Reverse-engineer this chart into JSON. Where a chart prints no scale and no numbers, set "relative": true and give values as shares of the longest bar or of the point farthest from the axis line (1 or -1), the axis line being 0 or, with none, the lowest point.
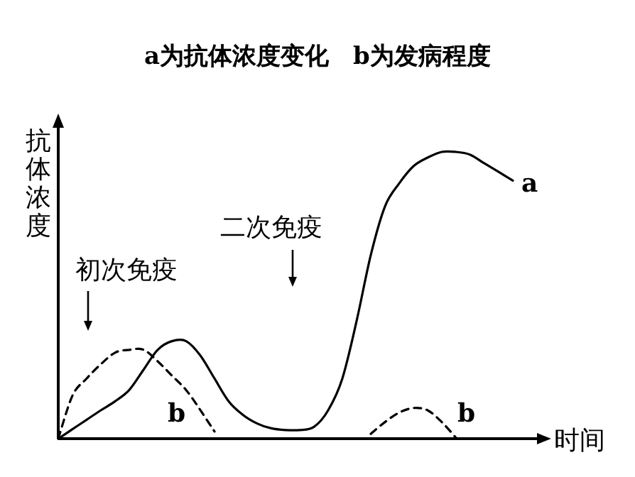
{
  "chart_data": {
    "type": "line",
    "title": "a为抗体浓度变化　b为发病程度",
    "ylabel": "抗体浓度",
    "xlabel": "时间",
    "relative": true,
    "categories": [
      null,
      null,
      null,
      null,
      null,
      null,
      null,
      null,
      null,
      null,
      null,
      null,
      null,
      null,
      null,
      null,
      null,
      null,
      null,
      null,
      null,
      null,
      null,
      null,
      null,
      null,
      null,
      null,
      null,
      null,
      null,
      null,
      null
    ],
    "series": [
      {
        "name": "a",
        "color": "#000000",
        "line_style": "solid",
        "values": [
          0,
          0.033,
          0.066,
          0.099,
          0.13,
          0.17,
          0.24,
          0.31,
          0.34,
          0.34,
          0.29,
          0.21,
          0.13,
          0.083,
          0.053,
          0.036,
          0.03,
          0.03,
          0.041,
          0.099,
          0.21,
          0.41,
          0.64,
          0.81,
          0.89,
          0.95,
          0.98,
          1,
          1,
          0.99,
          0.96,
          0.93,
          0.9
        ]
      },
      {
        "name": "b",
        "color": "#000000",
        "line_style": "dashed",
        "values": [
          0,
          0.15,
          0.21,
          0.26,
          0.3,
          0.31,
          0.31,
          0.27,
          0.22,
          0.17,
          0.1,
          0.025,
          null,
          null,
          null,
          null,
          null,
          null,
          null,
          null,
          null,
          null,
          0.017,
          0.058,
          0.091,
          0.107,
          0.099,
          0.058,
          0.003,
          null,
          null,
          null,
          null
        ]
      }
    ],
    "annotations": [
      "初次免疫",
      "二次免疫",
      "b"
    ],
    "legend": false
  }
}
